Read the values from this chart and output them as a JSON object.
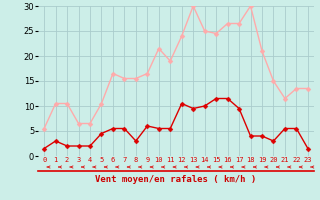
{
  "hours": [
    0,
    1,
    2,
    3,
    4,
    5,
    6,
    7,
    8,
    9,
    10,
    11,
    12,
    13,
    14,
    15,
    16,
    17,
    18,
    19,
    20,
    21,
    22,
    23
  ],
  "vent_moyen": [
    1.5,
    3,
    2,
    2,
    2,
    4.5,
    5.5,
    5.5,
    3,
    6,
    5.5,
    5.5,
    10.5,
    9.5,
    10,
    11.5,
    11.5,
    9.5,
    4,
    4,
    3,
    5.5,
    5.5,
    1.5
  ],
  "rafales": [
    5.5,
    10.5,
    10.5,
    6.5,
    6.5,
    10.5,
    16.5,
    15.5,
    15.5,
    16.5,
    21.5,
    19,
    24,
    30,
    25,
    24.5,
    26.5,
    26.5,
    30,
    21,
    15,
    11.5,
    13.5,
    13.5
  ],
  "color_moyen": "#dd0000",
  "color_rafales": "#ffaaaa",
  "bg_color": "#cceee8",
  "grid_color": "#aacccc",
  "xlabel": "Vent moyen/en rafales ( km/h )",
  "xlabel_color": "#cc0000",
  "ylim": [
    0,
    30
  ],
  "yticks": [
    0,
    5,
    10,
    15,
    20,
    25,
    30
  ],
  "markersize": 2.5,
  "linewidth": 1.0
}
